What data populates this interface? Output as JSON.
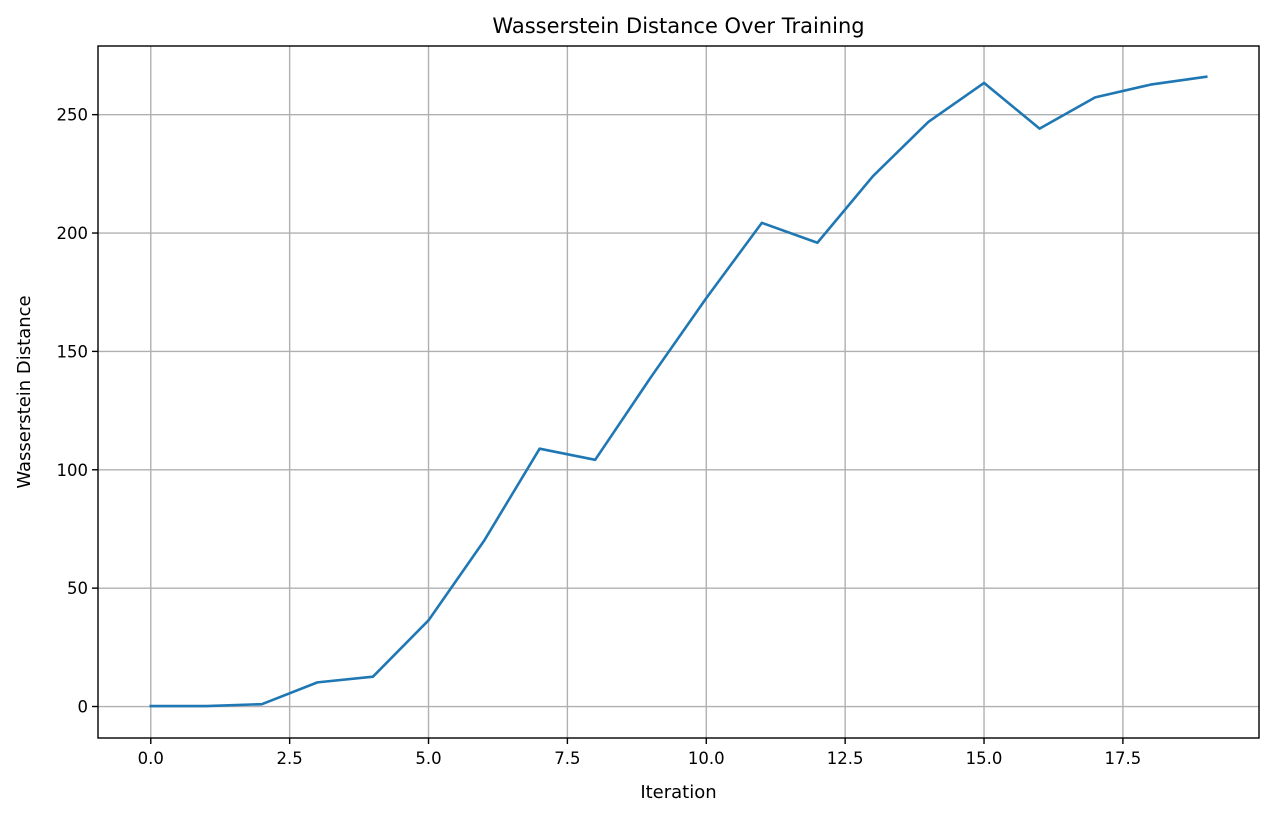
{
  "chart_data": {
    "type": "line",
    "title": "Wasserstein Distance Over Training",
    "xlabel": "Iteration",
    "ylabel": "Wasserstein Distance",
    "xlim": [
      -0.95,
      19.95
    ],
    "ylim": [
      -13.3,
      279
    ],
    "xticks": [
      0.0,
      2.5,
      5.0,
      7.5,
      10.0,
      12.5,
      15.0,
      17.5
    ],
    "xtick_labels": [
      "0.0",
      "2.5",
      "5.0",
      "7.5",
      "10.0",
      "12.5",
      "15.0",
      "17.5"
    ],
    "yticks": [
      0,
      50,
      100,
      150,
      200,
      250
    ],
    "ytick_labels": [
      "0",
      "50",
      "100",
      "150",
      "200",
      "250"
    ],
    "grid": true,
    "color": "#1f77b4",
    "series": [
      {
        "x": [
          0,
          1,
          2,
          3,
          4,
          5,
          6,
          7,
          8,
          9,
          10,
          11,
          12,
          13,
          14,
          15,
          16,
          17,
          18,
          19
        ],
        "y": [
          0.2,
          0.2,
          1.0,
          10.2,
          12.6,
          36.4,
          70.0,
          108.9,
          104.2,
          139.0,
          172.5,
          204.3,
          195.9,
          224.0,
          247.0,
          263.4,
          244.1,
          257.3,
          262.7,
          266.0
        ]
      }
    ]
  }
}
